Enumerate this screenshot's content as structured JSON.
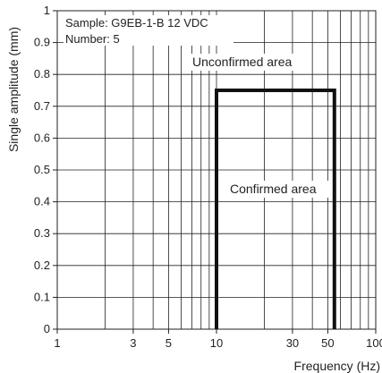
{
  "chart_data": {
    "type": "line",
    "xlabel": "Frequency (Hz)",
    "ylabel": "Single amplitude (mm)",
    "x_scale": "log",
    "xlim": [
      1,
      100
    ],
    "ylim": [
      0,
      1
    ],
    "grid": true,
    "x_ticks": [
      {
        "value": 1,
        "label": "1"
      },
      {
        "value": 3,
        "label": "3"
      },
      {
        "value": 5,
        "label": "5"
      },
      {
        "value": 10,
        "label": "10"
      },
      {
        "value": 30,
        "label": "30"
      },
      {
        "value": 50,
        "label": "50"
      },
      {
        "value": 100,
        "label": "100"
      }
    ],
    "y_ticks": [
      {
        "value": 0,
        "label": "0"
      },
      {
        "value": 0.1,
        "label": "0.1"
      },
      {
        "value": 0.2,
        "label": "0.2"
      },
      {
        "value": 0.3,
        "label": "0.3"
      },
      {
        "value": 0.4,
        "label": "0.4"
      },
      {
        "value": 0.5,
        "label": "0.5"
      },
      {
        "value": 0.6,
        "label": "0.6"
      },
      {
        "value": 0.7,
        "label": "0.7"
      },
      {
        "value": 0.8,
        "label": "0.8"
      },
      {
        "value": 0.9,
        "label": "0.9"
      },
      {
        "value": 1,
        "label": "1"
      }
    ],
    "series": [
      {
        "x": [
          10,
          10,
          55,
          55
        ],
        "y": [
          0,
          0.75,
          0.75,
          0
        ]
      }
    ],
    "annotations": {
      "sample": "Sample: G9EB-1-B 12 VDC",
      "number": "Number: 5",
      "unconfirmed": "Unconfirmed area",
      "confirmed": "Confirmed area"
    }
  }
}
